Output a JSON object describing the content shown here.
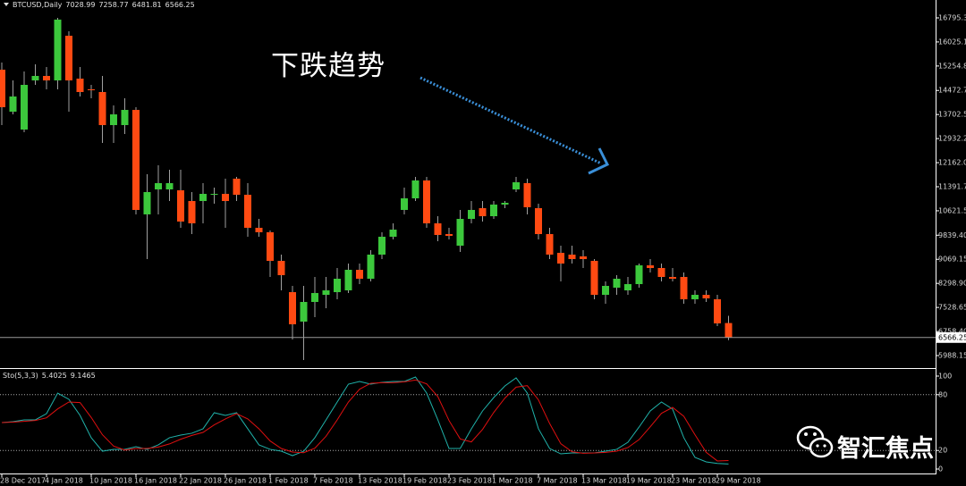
{
  "chart_data": {
    "type": "candlestick",
    "title": "BTCUSD,Daily",
    "header_values": [
      7028.99,
      7258.77,
      6481.81,
      6566.25
    ],
    "annotation": "下跌趋势",
    "watermark": "智汇焦点",
    "up_color": "#3cc83c",
    "down_color": "#ff4a12",
    "wick_color": "#a0a0a0",
    "categories": [
      "28 Dec 2017",
      null,
      null,
      null,
      "4 Jan 2018",
      null,
      null,
      null,
      "10 Jan 2018",
      null,
      null,
      null,
      "16 Jan 2018",
      null,
      null,
      null,
      "22 Jan 2018",
      null,
      null,
      null,
      "26 Jan 2018",
      null,
      null,
      null,
      "1 Feb 2018",
      null,
      null,
      null,
      "7 Feb 2018",
      null,
      null,
      null,
      "13 Feb 2018",
      null,
      null,
      null,
      "19 Feb 2018",
      null,
      null,
      null,
      "23 Feb 2018",
      null,
      null,
      null,
      "1 Mar 2018",
      null,
      null,
      null,
      "7 Mar 2018",
      null,
      null,
      null,
      "13 Mar 2018",
      null,
      null,
      null,
      "19 Mar 2018",
      null,
      null,
      null,
      "23 Mar 2018",
      null,
      null,
      null,
      "29 Mar 2018",
      null
    ],
    "open": [
      15137,
      13793,
      13221,
      14794,
      14937,
      14794,
      16223,
      14851,
      14508,
      14422,
      13364,
      13364,
      13850,
      10506,
      11306,
      11306,
      11277,
      10934,
      10934,
      11134,
      11163,
      11649,
      11134,
      10077,
      9934,
      9019,
      8018,
      7075,
      7704,
      7932,
      8018,
      8075,
      8733,
      8447,
      9219,
      9791,
      10649,
      11020,
      11592,
      10220,
      9876,
      9505,
      10362,
      10706,
      10448,
      10820,
      11306,
      11506,
      10706,
      9876,
      9276,
      9219,
      9162,
      9019,
      7932,
      8161,
      8075,
      8275,
      8876,
      8790,
      8504,
      8504,
      7790,
      7932,
      7790,
      7028.99
    ],
    "high": [
      15366,
      14794,
      15080,
      15309,
      15223,
      16795,
      16366,
      15223,
      14651,
      14937,
      13994,
      14222,
      13936,
      11792,
      12078,
      11935,
      11935,
      11220,
      11506,
      11363,
      11649,
      11706,
      11506,
      10362,
      9991,
      9219,
      8218,
      8218,
      8504,
      8504,
      8790,
      8933,
      8933,
      9362,
      9934,
      10220,
      11363,
      11706,
      11706,
      10448,
      10077,
      10649,
      10934,
      10934,
      10934,
      10934,
      11706,
      11649,
      10849,
      10077,
      9505,
      9505,
      9362,
      9076,
      8361,
      8561,
      8504,
      8933,
      9076,
      8933,
      8790,
      8647,
      8075,
      8075,
      7932,
      7258.77
    ],
    "low": [
      13364,
      13707,
      13136,
      14651,
      14508,
      14508,
      13793,
      14279,
      14222,
      12793,
      12793,
      13078,
      10506,
      9076,
      10506,
      10934,
      10077,
      9876,
      10220,
      10849,
      10077,
      10934,
      9791,
      9791,
      8504,
      8075,
      6503,
      5845,
      7218,
      7504,
      7790,
      7990,
      8275,
      8361,
      9076,
      9705,
      10506,
      10934,
      10077,
      9648,
      9705,
      9305,
      10220,
      10277,
      10362,
      10706,
      11220,
      10506,
      9705,
      9076,
      8361,
      8933,
      8790,
      7790,
      7647,
      7932,
      7932,
      8161,
      8647,
      8361,
      8361,
      7647,
      7647,
      7704,
      6932,
      6481.81
    ],
    "close": [
      13936,
      14279,
      14651,
      14937,
      14794,
      16740,
      14794,
      14422,
      14480,
      13364,
      13707,
      13850,
      10649,
      11220,
      11506,
      11506,
      10277,
      10220,
      11163,
      11163,
      10934,
      11134,
      10077,
      9934,
      9019,
      8561,
      6989,
      7704,
      7990,
      8075,
      8447,
      8733,
      8447,
      9219,
      9791,
      10019,
      11020,
      11592,
      10220,
      9848,
      9819,
      10362,
      10649,
      10448,
      10820,
      10877,
      11534,
      10734,
      9876,
      9219,
      8933,
      9076,
      9076,
      7932,
      8218,
      8447,
      8275,
      8876,
      8790,
      8504,
      8447,
      7790,
      7932,
      7818,
      7018,
      6566.25
    ],
    "ylim": [
      5588,
      17367
    ],
    "yticks": [
      16795.35,
      {
        "value": 16025.1,
        "label": "16025.10"
      },
      15254.85,
      14472.75,
      {
        "value": 13702.5,
        "label": "13702.50"
      },
      12932.25,
      {
        "value": 12162,
        "label": "12162.00"
      },
      11391.75,
      {
        "value": 10621.5,
        "label": "10621.50"
      },
      {
        "value": 9839.4,
        "label": "9839.40"
      },
      9069.15,
      {
        "value": 8298.9,
        "label": "8298.90"
      },
      7528.65,
      {
        "value": 6758.4,
        "label": "6758.40"
      },
      5988.15
    ],
    "current_price": 6566.25,
    "indicator": {
      "name": "Sto(5,3,3)",
      "main_value": 5.4025,
      "signal_value": 9.1465,
      "ylim": [
        -4.8,
        106.7
      ],
      "yticks": [
        0,
        20,
        80,
        100
      ],
      "levels": [
        20,
        80
      ],
      "series": [
        {
          "color": "#20b2aa",
          "values": [
            50,
            51,
            52.9,
            52.9,
            59.6,
            81.7,
            75,
            57.7,
            33.7,
            19.2,
            21.2,
            21.2,
            24,
            21.2,
            26,
            33.7,
            36.5,
            38.5,
            43.3,
            60.6,
            57.7,
            60.6,
            43.3,
            26,
            21.2,
            19.2,
            14.4,
            19.2,
            33.7,
            52.9,
            72.1,
            91.3,
            94.2,
            91.3,
            93.3,
            94.2,
            94.2,
            99,
            81.7,
            52.9,
            22.1,
            22.1,
            43.3,
            62.5,
            76.9,
            89.4,
            98.1,
            81.7,
            43.3,
            22.1,
            16.3,
            17.3,
            17.3,
            17.3,
            19.2,
            21.2,
            28.8,
            45.2,
            62.5,
            72.1,
            64.4,
            33.7,
            12.5,
            7.7,
            6.0,
            5.4025
          ]
        },
        {
          "color": "#e01010",
          "values": [
            50,
            50.5,
            51.3,
            52.3,
            55.1,
            64.7,
            72.1,
            71.5,
            55.5,
            36.9,
            24.7,
            20.5,
            22.1,
            22.1,
            23.7,
            27,
            32.1,
            36.2,
            39.4,
            47.5,
            53.9,
            59.6,
            53.9,
            43.3,
            30.2,
            22.1,
            18.3,
            17.6,
            22.4,
            35.3,
            52.9,
            72.1,
            85.9,
            92.3,
            92.9,
            92.9,
            93.9,
            95.8,
            91.6,
            77.9,
            52.2,
            32.4,
            29.2,
            42.6,
            60.9,
            76.3,
            88.1,
            89.7,
            74.4,
            49,
            27.2,
            18.6,
            17,
            17.3,
            17.9,
            19.2,
            23.1,
            31.7,
            45.5,
            59.9,
            66.3,
            56.7,
            36.9,
            18,
            8.7,
            9.1465
          ]
        }
      ]
    }
  }
}
